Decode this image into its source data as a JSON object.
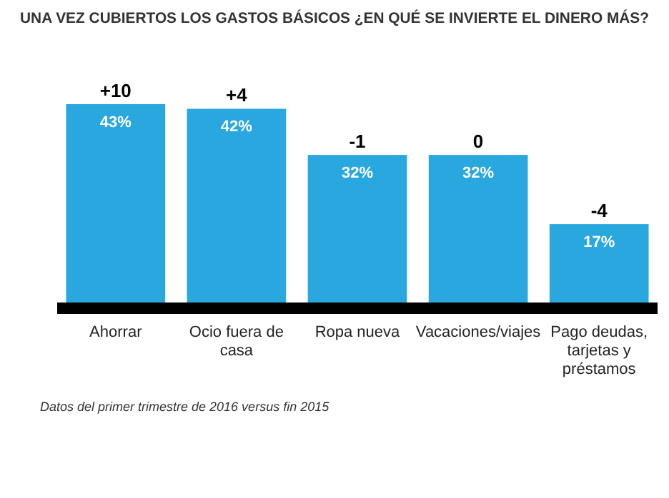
{
  "chart_data": {
    "type": "bar",
    "title": "UNA VEZ CUBIERTOS LOS GASTOS BÁSICOS ¿EN QUÉ SE INVIERTE EL DINERO MÁS?",
    "categories": [
      "Ahorrar",
      "Ocio fuera de casa",
      "Ropa nueva",
      "Vacaciones/viajes",
      "Pago deudas, tarjetas y préstamos"
    ],
    "values": [
      43,
      42,
      32,
      32,
      17
    ],
    "value_labels": [
      "43%",
      "42%",
      "32%",
      "32%",
      "17%"
    ],
    "color": "#29a8e0",
    "annotations": [
      {
        "text": "+10",
        "x": "Ahorrar",
        "y": 43
      },
      {
        "text": "+4",
        "x": "Ocio fuera de casa",
        "y": 42
      },
      {
        "text": "-1",
        "x": "Ropa nueva",
        "y": 32
      },
      {
        "text": "0",
        "x": "Vacaciones/viajes",
        "y": 32
      },
      {
        "text": "-4",
        "x": "Pago deudas, tarjetas y préstamos",
        "y": 17
      },
      "Datos del primer trimestre de 2016 versus fin 2015"
    ]
  }
}
